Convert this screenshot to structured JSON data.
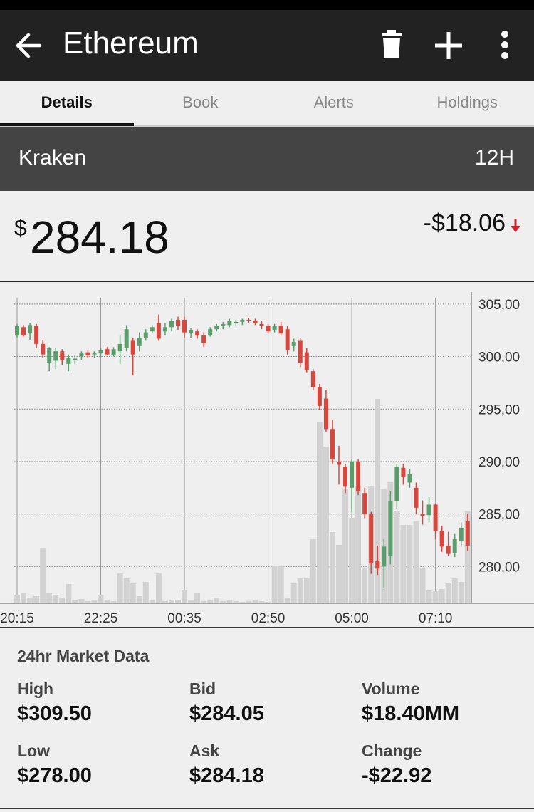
{
  "header": {
    "title": "Ethereum"
  },
  "tabs": [
    "Details",
    "Book",
    "Alerts",
    "Holdings"
  ],
  "exchange": {
    "name": "Kraken",
    "interval": "12H"
  },
  "price": {
    "currency": "$",
    "value": "284.18",
    "change": "-$18.06"
  },
  "chart_data": {
    "type": "candlestick",
    "up_color": "#5b9e6c",
    "down_color": "#d8473d",
    "volume_color": "#d2d2d2",
    "ylim": [
      276.5,
      305.6
    ],
    "yticks": [
      {
        "value": 305,
        "label": "305,00"
      },
      {
        "value": 300,
        "label": "300,00"
      },
      {
        "value": 295,
        "label": "295,00"
      },
      {
        "value": 290,
        "label": "290,00"
      },
      {
        "value": 285,
        "label": "285,00"
      },
      {
        "value": 280,
        "label": "280,00"
      }
    ],
    "xticks": [
      {
        "value": 0,
        "label": "20:15"
      },
      {
        "value": 13,
        "label": "22:25"
      },
      {
        "value": 26,
        "label": "00:35"
      },
      {
        "value": 39,
        "label": "02:50"
      },
      {
        "value": 52,
        "label": "05:00"
      },
      {
        "value": 65,
        "label": "07:10"
      }
    ],
    "open": [
      302.0,
      302.8,
      302.2,
      302.9,
      301.2,
      299.4,
      299.6,
      300.5,
      299.3,
      299.8,
      300.0,
      300.4,
      300.2,
      300.3,
      300.7,
      300.1,
      300.5,
      300.8,
      301.5,
      301.0,
      301.8,
      302.4,
      303.2,
      302.4,
      302.8,
      303.5,
      303.5,
      302.2,
      302.4,
      302.0,
      302.0,
      302.6,
      302.9,
      303.0,
      303.2,
      303.3,
      303.5,
      303.4,
      303.1,
      302.9,
      302.5,
      302.9,
      302.6,
      301.0,
      301.5,
      300.4,
      298.6,
      297.1,
      296.0,
      293.1,
      290.0,
      289.5,
      287.5,
      290.0,
      287.0,
      285.0,
      280.5,
      280.0,
      281.0,
      286.2,
      289.4,
      288.0,
      287.5,
      285.0,
      284.9,
      285.9,
      283.4,
      282.0,
      281.3,
      282.4,
      284.3
    ],
    "high": [
      303.1,
      303.0,
      303.2,
      303.1,
      301.6,
      300.9,
      300.8,
      300.7,
      300.2,
      300.1,
      300.5,
      300.6,
      300.5,
      300.8,
      300.9,
      300.9,
      302.0,
      303.0,
      301.8,
      302.3,
      302.6,
      303.0,
      304.0,
      303.2,
      303.6,
      303.8,
      303.8,
      302.7,
      302.6,
      302.3,
      302.8,
      303.1,
      303.3,
      303.6,
      303.5,
      303.6,
      303.7,
      303.6,
      303.4,
      303.1,
      303.1,
      303.3,
      302.9,
      301.7,
      301.8,
      300.8,
      298.8,
      297.4,
      296.8,
      294.0,
      291.5,
      289.8,
      290.2,
      290.2,
      287.5,
      285.2,
      282.0,
      282.6,
      287.2,
      289.8,
      289.8,
      289.3,
      288.0,
      286.3,
      286.6,
      286.0,
      283.9,
      283.3,
      283.1,
      284.2,
      285.0
    ],
    "low": [
      301.8,
      301.9,
      301.6,
      300.8,
      299.9,
      298.6,
      298.8,
      299.2,
      298.6,
      299.3,
      299.7,
      299.9,
      299.9,
      300.0,
      300.1,
      300.0,
      299.3,
      300.5,
      298.2,
      300.5,
      301.5,
      302.2,
      301.5,
      302.0,
      302.4,
      302.5,
      301.8,
      301.8,
      301.7,
      300.9,
      301.9,
      302.4,
      302.6,
      302.8,
      302.9,
      303.0,
      303.2,
      303.0,
      302.6,
      302.2,
      302.3,
      302.0,
      300.2,
      300.5,
      299.0,
      298.5,
      296.8,
      294.9,
      292.8,
      289.8,
      287.8,
      287.0,
      285.2,
      286.8,
      284.6,
      279.3,
      279.2,
      278.0,
      280.2,
      285.5,
      287.8,
      287.5,
      285.0,
      284.0,
      284.2,
      282.6,
      281.4,
      281.0,
      280.9,
      281.9,
      281.5
    ],
    "close": [
      302.9,
      302.0,
      303.0,
      301.2,
      300.2,
      300.8,
      300.5,
      299.7,
      299.9,
      299.8,
      300.3,
      300.1,
      300.3,
      300.6,
      300.2,
      300.7,
      301.2,
      302.6,
      300.2,
      301.8,
      302.3,
      302.8,
      301.7,
      302.8,
      303.4,
      302.9,
      302.3,
      302.5,
      302.0,
      301.3,
      302.6,
      302.9,
      303.1,
      303.4,
      303.3,
      303.5,
      303.4,
      303.2,
      302.9,
      302.4,
      302.9,
      302.2,
      300.6,
      301.4,
      299.4,
      298.7,
      297.1,
      295.3,
      293.1,
      290.2,
      289.7,
      287.6,
      290.0,
      287.2,
      285.0,
      280.3,
      279.8,
      281.9,
      286.2,
      289.5,
      288.5,
      288.8,
      285.6,
      284.8,
      285.9,
      283.4,
      281.9,
      281.2,
      282.6,
      283.7,
      282.0
    ],
    "volume": [
      12,
      15,
      8,
      10,
      78,
      15,
      12,
      8,
      27,
      5,
      6,
      3,
      4,
      12,
      4,
      3,
      42,
      35,
      28,
      10,
      30,
      5,
      42,
      3,
      4,
      4,
      18,
      4,
      15,
      3,
      4,
      8,
      3,
      4,
      3,
      2,
      3,
      4,
      3,
      2,
      52,
      52,
      8,
      28,
      35,
      35,
      90,
      255,
      220,
      100,
      82,
      160,
      120,
      165,
      50,
      165,
      287,
      160,
      170,
      130,
      110,
      110,
      115,
      50,
      18,
      17,
      20,
      28,
      35,
      30,
      130
    ]
  },
  "market_data": {
    "title": "24hr Market Data",
    "items": [
      {
        "label": "High",
        "value": "$309.50"
      },
      {
        "label": "Bid",
        "value": "$284.05"
      },
      {
        "label": "Volume",
        "value": "$18.40MM"
      },
      {
        "label": "Low",
        "value": "$278.00"
      },
      {
        "label": "Ask",
        "value": "$284.18"
      },
      {
        "label": "Change",
        "value": "-$22.92"
      }
    ]
  }
}
